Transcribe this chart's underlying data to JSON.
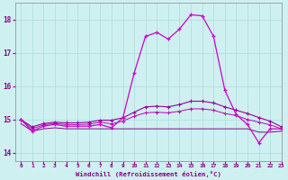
{
  "xlabel": "Windchill (Refroidissement éolien,°C)",
  "background_color": "#cff0f0",
  "grid_color": "#aadddd",
  "line_color1": "#cc00cc",
  "line_color2": "#990099",
  "line_color3": "#bb00bb",
  "line_color4": "#880088",
  "x": [
    0,
    1,
    2,
    3,
    4,
    5,
    6,
    7,
    8,
    9,
    10,
    11,
    12,
    13,
    14,
    15,
    16,
    17,
    18,
    19,
    20,
    21,
    22,
    23
  ],
  "ylim": [
    13.75,
    18.5
  ],
  "xlim": [
    -0.5,
    23
  ],
  "yticks": [
    14,
    15,
    16,
    17,
    18
  ],
  "xticks": [
    0,
    1,
    2,
    3,
    4,
    5,
    6,
    7,
    8,
    9,
    10,
    11,
    12,
    13,
    14,
    15,
    16,
    17,
    18,
    19,
    20,
    21,
    22,
    23
  ],
  "line1": [
    15.0,
    14.65,
    14.8,
    14.85,
    14.8,
    14.8,
    14.8,
    14.85,
    14.75,
    15.05,
    16.4,
    17.5,
    17.62,
    17.42,
    17.72,
    18.15,
    18.12,
    17.5,
    15.88,
    15.15,
    14.85,
    14.3,
    14.72,
    14.72
  ],
  "line2": [
    15.0,
    14.78,
    14.88,
    14.92,
    14.9,
    14.9,
    14.92,
    14.98,
    14.98,
    15.05,
    15.22,
    15.38,
    15.4,
    15.38,
    15.45,
    15.55,
    15.55,
    15.5,
    15.38,
    15.28,
    15.18,
    15.06,
    14.95,
    14.78
  ],
  "line3": [
    15.0,
    14.72,
    14.84,
    14.88,
    14.85,
    14.85,
    14.86,
    14.92,
    14.87,
    14.95,
    15.1,
    15.2,
    15.22,
    15.2,
    15.25,
    15.32,
    15.32,
    15.28,
    15.18,
    15.12,
    15.0,
    14.92,
    14.84,
    14.72
  ],
  "line4": [
    14.88,
    14.65,
    14.72,
    14.75,
    14.72,
    14.72,
    14.72,
    14.72,
    14.72,
    14.72,
    14.72,
    14.72,
    14.72,
    14.72,
    14.72,
    14.72,
    14.72,
    14.72,
    14.72,
    14.72,
    14.72,
    14.62,
    14.62,
    14.65
  ]
}
